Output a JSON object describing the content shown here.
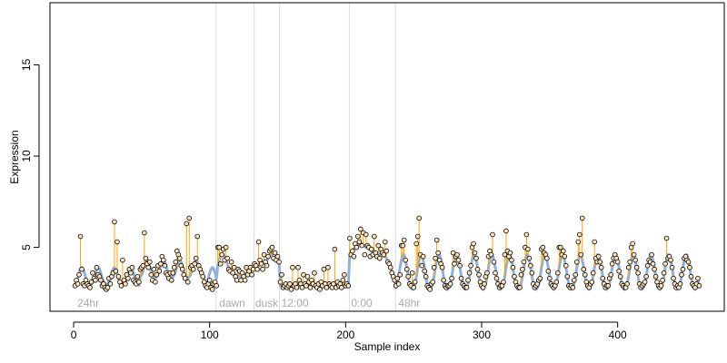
{
  "chart_data": {
    "type": "scatter",
    "xlabel": "Sample index",
    "ylabel": "Expression",
    "xlim": [
      -17.4,
      478.4
    ],
    "ylim": [
      1.5,
      18.4
    ],
    "xticks": [
      0,
      100,
      200,
      300,
      400
    ],
    "yticks": [
      5,
      10,
      15
    ],
    "stem_color": "#ffa500",
    "vlines": [
      104.7,
      132.7,
      151.3,
      202.7,
      236.7
    ],
    "vline_color": "#dddddd",
    "annotations": [
      {
        "x": 2.7,
        "label": "24hr"
      },
      {
        "x": 107,
        "label": "dawn"
      },
      {
        "x": 133.5,
        "label": "dusk"
      },
      {
        "x": 152.7,
        "label": "12:00"
      },
      {
        "x": 204,
        "label": "0:00"
      },
      {
        "x": 238.7,
        "label": "48hr"
      }
    ],
    "series": [
      {
        "color": "#000000",
        "fill": "#fbe3bd",
        "values": [
          2.9,
          3.2,
          3.0,
          3.5,
          5.6,
          3.8,
          3.0,
          2.9,
          3.2,
          3.0,
          2.9,
          2.8,
          3.1,
          3.6,
          3.3,
          3.2,
          3.9,
          3.5,
          3.4,
          3.2,
          2.9,
          3.0,
          2.8,
          2.7,
          2.8,
          3.3,
          3.0,
          3.4,
          3.6,
          6.4,
          3.7,
          5.3,
          3.4,
          3.1,
          2.9,
          4.3,
          3.2,
          3.0,
          3.5,
          3.3,
          3.8,
          3.6,
          3.9,
          3.2,
          3.1,
          3.0,
          3.4,
          3.1,
          3.8,
          3.9,
          4.0,
          5.8,
          4.4,
          4.1,
          3.9,
          4.2,
          3.5,
          3.2,
          3.8,
          3.1,
          3.5,
          4.0,
          3.7,
          4.1,
          4.5,
          4.3,
          4.0,
          3.6,
          3.5,
          3.3,
          3.6,
          3.2,
          3.6,
          3.9,
          4.2,
          4.8,
          4.6,
          4.4,
          4.0,
          3.8,
          3.5,
          3.3,
          6.3,
          3.1,
          6.6,
          3.9,
          4.0,
          3.8,
          4.1,
          4.4,
          5.6,
          4.0,
          3.8,
          3.6,
          3.4,
          3.1,
          2.9,
          2.8,
          3.0,
          3.2,
          2.8,
          2.7,
          3.0,
          3.1,
          2.9,
          5.0,
          5.0,
          4.1,
          4.6,
          4.9,
          4.3,
          5.0,
          4.4,
          3.8,
          3.7,
          4.2,
          3.6,
          3.9,
          3.4,
          3.2,
          3.8,
          3.7,
          3.2,
          3.6,
          3.4,
          3.2,
          3.9,
          3.5,
          3.7,
          3.9,
          3.5,
          3.8,
          4.1,
          4.0,
          3.8,
          5.3,
          4.3,
          4.1,
          3.8,
          4.6,
          4.2,
          4.0,
          4.5,
          4.8,
          4.9,
          5.0,
          4.4,
          4.7,
          4.3,
          4.5,
          4.2,
          3.1,
          3.5,
          2.8,
          2.9,
          3.0,
          2.8,
          2.9,
          3.0,
          2.7,
          3.9,
          2.9,
          3.0,
          2.8,
          3.9,
          3.2,
          3.0,
          2.8,
          3.5,
          3.0,
          2.9,
          3.4,
          3.1,
          2.8,
          3.2,
          3.0,
          3.6,
          2.9,
          2.8,
          3.0,
          2.7,
          3.1,
          2.9,
          3.8,
          3.0,
          2.8,
          3.9,
          3.0,
          2.9,
          2.8,
          3.0,
          4.9,
          2.8,
          3.1,
          2.9,
          3.0,
          2.8,
          3.2,
          3.5,
          2.9,
          3.0,
          2.9,
          5.5,
          4.6,
          4.8,
          4.5,
          5.2,
          5.0,
          5.6,
          5.3,
          6.0,
          5.1,
          5.8,
          4.6,
          5.7,
          5.1,
          5.0,
          4.5,
          4.9,
          4.6,
          5.6,
          4.7,
          4.5,
          5.1,
          4.4,
          4.9,
          4.7,
          4.6,
          5.3,
          4.8,
          4.2,
          4.1,
          3.9,
          3.6,
          3.4,
          3.2,
          2.9,
          3.3,
          3.0,
          3.5,
          5.1,
          5.1,
          5.4,
          4.3,
          3.8,
          3.4,
          3.0,
          2.9,
          3.6,
          2.8,
          3.1,
          5.2,
          5.6,
          6.6,
          4.6,
          4.0,
          4.5,
          3.7,
          3.4,
          2.9,
          2.8,
          2.7,
          3.0,
          3.1,
          3.9,
          4.4,
          5.4,
          4.7,
          4.3,
          4.1,
          3.9,
          3.2,
          2.9,
          2.8,
          2.9,
          2.9,
          3.0,
          3.3,
          4.7,
          4.1,
          4.5,
          4.6,
          4.3,
          4.0,
          3.3,
          3.0,
          2.9,
          2.8,
          2.8,
          3.2,
          3.6,
          4.0,
          5.0,
          5.2,
          4.7,
          4.4,
          3.8,
          3.5,
          3.1,
          2.9,
          2.8,
          3.0,
          3.4,
          3.6,
          4.5,
          4.8,
          4.6,
          5.7,
          4.2,
          3.6,
          3.3,
          3.0,
          2.8,
          2.9,
          2.9,
          3.1,
          4.6,
          5.9,
          4.8,
          4.5,
          4.7,
          4.3,
          3.9,
          3.4,
          3.1,
          2.9,
          2.8,
          2.8,
          3.5,
          3.8,
          4.2,
          5.0,
          5.7,
          4.9,
          4.4,
          4.0,
          3.6,
          3.0,
          2.8,
          2.9,
          3.0,
          3.2,
          3.3,
          4.9,
          5.0,
          4.7,
          4.6,
          4.4,
          3.7,
          3.3,
          3.0,
          2.9,
          2.8,
          2.9,
          3.1,
          3.6,
          5.0,
          5.0,
          4.6,
          4.8,
          4.5,
          4.0,
          3.4,
          2.9,
          2.8,
          2.9,
          2.8,
          3.2,
          3.5,
          4.2,
          5.3,
          5.7,
          4.6,
          6.6,
          3.8,
          3.5,
          3.1,
          2.9,
          2.8,
          3.0,
          3.1,
          3.6,
          5.3,
          4.4,
          4.2,
          4.5,
          4.2,
          3.9,
          3.3,
          3.0,
          2.8,
          2.9,
          2.9,
          3.3,
          3.5,
          4.1,
          4.4,
          4.6,
          4.4,
          4.2,
          3.7,
          3.4,
          3.0,
          2.9,
          2.8,
          2.8,
          3.0,
          3.9,
          4.2,
          5.0,
          5.2,
          4.6,
          4.3,
          3.9,
          3.6,
          3.0,
          2.8,
          2.9,
          3.0,
          3.1,
          3.4,
          4.0,
          4.3,
          4.2,
          4.6,
          4.1,
          3.8,
          3.4,
          3.1,
          2.9,
          2.8,
          2.9,
          3.2,
          3.6,
          4.1,
          5.5,
          4.4,
          4.5,
          4.3,
          3.9,
          3.3,
          3.0,
          2.8,
          2.9,
          2.8,
          3.0,
          3.5,
          3.8,
          4.4,
          4.5,
          4.3,
          4.2,
          3.9,
          3.4,
          3.0,
          2.9,
          2.8,
          3.0,
          3.3,
          2.9
        ]
      },
      {
        "color": "#8fb0dd",
        "values": [
          3.0,
          3.1,
          3.3,
          3.6,
          3.8,
          3.9,
          3.8,
          3.6,
          3.3,
          3.1,
          3.0,
          2.9,
          3.0,
          3.1,
          3.3,
          3.6,
          3.8,
          3.9,
          3.8,
          3.6,
          3.3,
          3.1,
          3.0,
          2.9,
          3.0,
          3.1,
          3.3,
          3.6,
          3.8,
          3.9,
          3.8,
          3.6,
          3.3,
          3.1,
          3.0,
          2.9,
          3.0,
          3.1,
          3.3,
          3.6,
          3.8,
          3.9,
          3.8,
          3.6,
          3.3,
          3.1,
          3.0,
          2.9,
          3.4,
          3.5,
          3.7,
          4.0,
          4.2,
          4.3,
          4.2,
          4.0,
          3.7,
          3.5,
          3.4,
          3.3,
          3.4,
          3.5,
          3.7,
          4.0,
          4.2,
          4.3,
          4.2,
          4.0,
          3.7,
          3.5,
          3.4,
          3.3,
          3.4,
          3.5,
          3.7,
          4.0,
          4.2,
          4.3,
          4.2,
          4.0,
          3.7,
          3.5,
          3.4,
          3.3,
          3.4,
          3.5,
          3.7,
          4.0,
          4.2,
          4.3,
          4.2,
          4.0,
          3.7,
          3.5,
          3.4,
          3.3,
          3.0,
          3.1,
          3.3,
          3.6,
          3.8,
          3.9,
          3.8,
          3.6,
          3.3,
          4.0,
          4.3,
          4.5,
          4.6,
          4.6,
          4.5,
          4.3,
          4.1,
          3.9,
          3.8,
          3.7,
          3.6,
          3.6,
          3.5,
          3.5,
          3.5,
          3.4,
          3.4,
          3.4,
          3.5,
          3.5,
          3.6,
          3.6,
          3.7,
          3.7,
          3.8,
          3.8,
          3.8,
          3.9,
          3.9,
          4.0,
          4.0,
          4.1,
          4.1,
          4.2,
          4.2,
          4.3,
          4.4,
          4.5,
          4.6,
          4.6,
          4.7,
          4.7,
          4.6,
          4.5,
          4.4,
          2.9,
          2.9,
          2.9,
          2.9,
          2.9,
          2.9,
          2.9,
          2.9,
          2.9,
          2.9,
          2.9,
          2.9,
          2.9,
          2.9,
          2.9,
          2.9,
          2.9,
          2.9,
          2.9,
          2.9,
          2.9,
          2.9,
          2.9,
          2.9,
          2.9,
          2.9,
          2.9,
          2.9,
          2.9,
          2.9,
          2.9,
          2.9,
          2.9,
          2.9,
          2.9,
          2.9,
          2.9,
          2.9,
          2.9,
          2.9,
          2.9,
          2.9,
          2.9,
          2.9,
          2.9,
          2.9,
          2.9,
          2.9,
          2.9,
          2.9,
          2.9,
          4.6,
          4.7,
          4.8,
          4.9,
          5.0,
          5.1,
          5.1,
          5.2,
          5.2,
          5.2,
          5.1,
          5.1,
          5.0,
          5.0,
          4.9,
          4.9,
          4.8,
          4.8,
          4.8,
          4.7,
          4.7,
          4.7,
          4.6,
          4.6,
          4.6,
          4.5,
          4.5,
          4.4,
          4.3,
          4.1,
          3.9,
          3.7,
          3.5,
          3.4,
          2.8,
          3.0,
          3.4,
          3.9,
          4.3,
          4.6,
          4.6,
          4.3,
          3.9,
          3.4,
          3.0,
          2.8,
          2.7,
          2.8,
          3.0,
          3.4,
          3.9,
          4.3,
          4.6,
          4.6,
          4.3,
          3.9,
          3.4,
          3.0,
          2.8,
          2.7,
          2.8,
          3.0,
          3.4,
          3.9,
          4.3,
          4.6,
          4.6,
          4.3,
          3.9,
          3.4,
          3.0,
          2.8,
          2.7,
          2.8,
          3.0,
          3.4,
          3.9,
          4.3,
          4.6,
          4.6,
          4.3,
          3.9,
          3.4,
          3.0,
          2.8,
          2.7,
          2.8,
          3.0,
          3.4,
          3.9,
          4.3,
          4.6,
          4.6,
          4.3,
          3.9,
          3.4,
          3.0,
          2.8,
          2.7,
          2.8,
          3.0,
          3.4,
          3.9,
          4.3,
          4.6,
          4.6,
          4.3,
          3.9,
          3.4,
          3.0,
          2.8,
          2.7,
          2.8,
          3.0,
          3.4,
          3.9,
          4.3,
          4.6,
          4.6,
          4.3,
          3.9,
          3.4,
          3.0,
          2.8,
          2.7,
          2.8,
          3.0,
          3.4,
          3.9,
          4.3,
          4.6,
          4.6,
          4.3,
          3.9,
          3.4,
          3.0,
          2.8,
          2.7,
          2.8,
          3.0,
          3.4,
          3.9,
          4.3,
          4.6,
          4.6,
          4.3,
          3.9,
          3.4,
          3.0,
          2.8,
          2.7,
          2.8,
          3.0,
          3.4,
          3.9,
          4.3,
          4.6,
          4.6,
          4.3,
          3.9,
          3.4,
          3.0,
          2.8,
          2.7,
          2.8,
          3.0,
          3.4,
          3.9,
          4.3,
          4.6,
          4.6,
          4.3,
          3.9,
          3.4,
          3.0,
          2.8,
          2.7,
          2.8,
          3.0,
          3.4,
          3.9,
          4.3,
          4.6,
          4.6,
          4.3,
          3.9,
          3.4,
          3.0,
          2.8,
          2.7,
          2.8,
          3.0,
          3.4,
          3.9,
          4.3,
          4.6,
          4.6,
          4.3,
          3.9,
          3.4,
          3.0,
          2.8,
          2.7,
          2.8,
          3.0,
          3.4,
          3.9,
          4.3,
          4.6,
          4.6,
          4.3,
          3.9,
          3.4,
          3.0,
          2.8,
          2.7,
          2.8,
          3.0,
          3.4,
          3.9,
          4.3,
          4.6,
          4.6,
          4.3,
          3.9,
          3.4,
          3.0,
          2.8,
          2.7,
          2.8,
          3.0,
          3.4,
          3.9,
          4.3,
          4.6,
          4.6,
          4.3,
          3.9,
          3.4,
          3.0,
          2.8,
          2.7,
          2.8,
          3.0,
          3.4,
          3.9,
          4.3,
          4.6,
          4.6,
          4.3,
          3.9,
          3.4,
          3.0,
          2.8,
          2.7,
          2.8,
          3.0,
          3.4
        ]
      }
    ]
  }
}
